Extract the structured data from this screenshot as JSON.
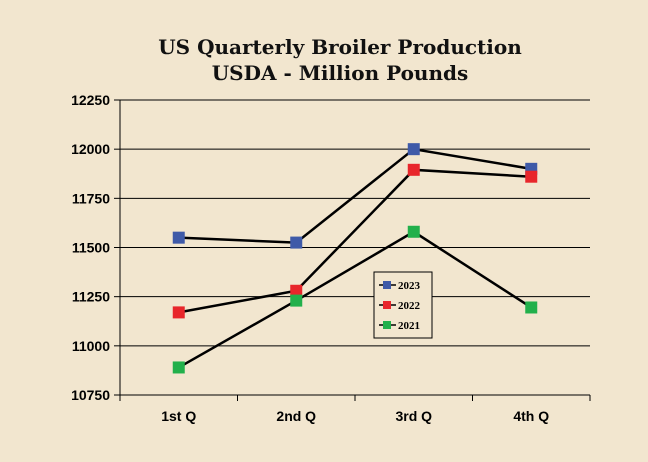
{
  "chart_data": {
    "type": "line",
    "title": "US Quarterly Broiler Production",
    "subtitle": "USDA - Million Pounds",
    "xlabel": "",
    "ylabel": "",
    "categories": [
      "1st Q",
      "2nd Q",
      "3rd Q",
      "4th Q"
    ],
    "ylim": [
      10750,
      12250
    ],
    "yticks": [
      12250,
      12000,
      11750,
      11500,
      11250,
      11000,
      10750
    ],
    "grid": true,
    "legend_position": "center-right",
    "series": [
      {
        "name": "2023",
        "color": "#3f5aa8",
        "values": [
          11550,
          11525,
          12000,
          11900
        ]
      },
      {
        "name": "2022",
        "color": "#e8262b",
        "values": [
          11170,
          11280,
          11895,
          11860
        ]
      },
      {
        "name": "2021",
        "color": "#22b04b",
        "values": [
          10890,
          11230,
          11580,
          11195
        ]
      }
    ],
    "line_color": "#000000",
    "background_color": "#f2e6cf"
  }
}
